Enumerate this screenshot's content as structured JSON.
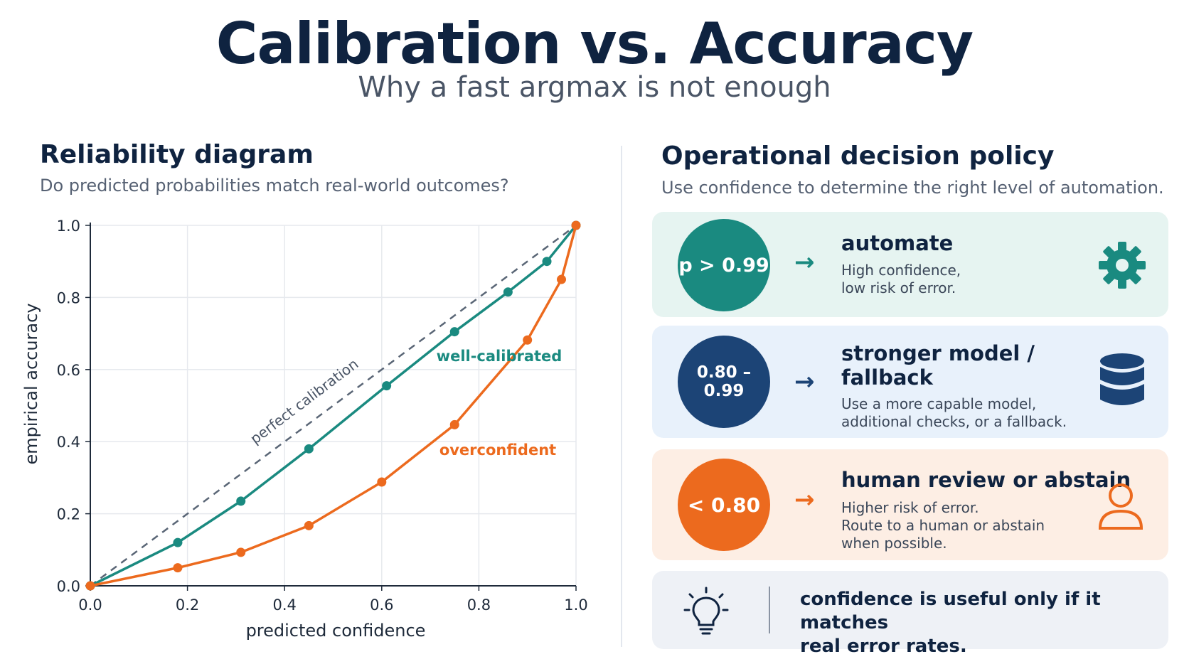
{
  "page": {
    "title": "Calibration vs. Accuracy",
    "subtitle": "Why a fast argmax is not enough"
  },
  "left_panel": {
    "heading": "Reliability diagram",
    "subheading": "Do predicted probabilities match real-world outcomes?"
  },
  "right_panel": {
    "heading": "Operational decision policy",
    "subheading": "Use confidence to determine the right level of automation.",
    "cards": [
      {
        "threshold": "p > 0.99",
        "title_lines": [
          "automate"
        ],
        "desc_lines": [
          "High confidence,",
          "low risk of error."
        ],
        "icon": "gear-icon",
        "color": "#1a8a80",
        "bg": "#e6f4f1"
      },
      {
        "threshold": "0.80 – 0.99",
        "title_lines": [
          "stronger model /",
          "fallback"
        ],
        "desc_lines": [
          "Use a more capable model,",
          "additional checks, or a fallback."
        ],
        "icon": "database-icon",
        "color": "#1c4476",
        "bg": "#e8f1fb"
      },
      {
        "threshold": "< 0.80",
        "title_lines": [
          "human review or abstain"
        ],
        "desc_lines": [
          "Higher risk of error.",
          "Route to a human or abstain",
          "when possible."
        ],
        "icon": "person-icon",
        "color": "#ec6a1e",
        "bg": "#fdeee4"
      }
    ],
    "note": {
      "icon": "lightbulb-icon",
      "lines": [
        "confidence is useful only if it matches",
        "real error rates."
      ],
      "bg": "#eef1f6"
    }
  },
  "chart_data": {
    "type": "line",
    "xlabel": "predicted confidence",
    "ylabel": "empirical accuracy",
    "xlim": [
      0,
      1
    ],
    "ylim": [
      0,
      1
    ],
    "x_ticks": [
      "0.0",
      "0.2",
      "0.4",
      "0.6",
      "0.8",
      "1.0"
    ],
    "y_ticks": [
      "0.0",
      "0.2",
      "0.4",
      "0.6",
      "0.8",
      "1.0"
    ],
    "grid": true,
    "reference_line": {
      "name": "perfect calibration",
      "x": [
        0,
        1
      ],
      "y": [
        0,
        1
      ],
      "style": "dashed",
      "color": "#5a6676"
    },
    "series": [
      {
        "name": "well-calibrated",
        "color": "#1a8a80",
        "x": [
          0.0,
          0.18,
          0.31,
          0.45,
          0.61,
          0.75,
          0.86,
          0.94,
          1.0
        ],
        "y": [
          0.0,
          0.12,
          0.235,
          0.38,
          0.555,
          0.705,
          0.815,
          0.9,
          1.0
        ]
      },
      {
        "name": "overconfident",
        "color": "#ec6a1e",
        "x": [
          0.0,
          0.18,
          0.31,
          0.45,
          0.6,
          0.75,
          0.9,
          0.97,
          1.0
        ],
        "y": [
          0.0,
          0.05,
          0.093,
          0.167,
          0.288,
          0.447,
          0.682,
          0.85,
          1.0
        ]
      }
    ]
  }
}
